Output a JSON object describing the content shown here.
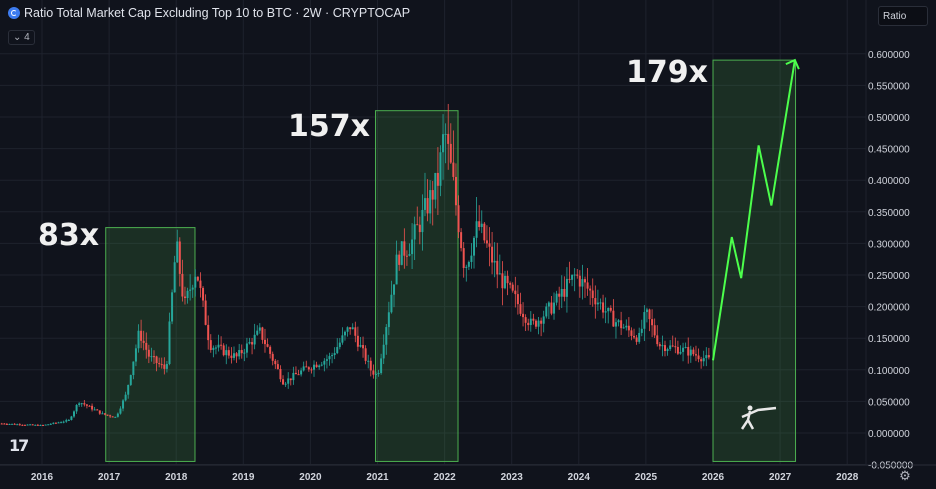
{
  "header": {
    "title": "Ratio Total Market Cap Excluding Top 10 to BTC · 2W · CRYPTOCAP",
    "collapse_label": "4",
    "scale_button": "Ratio",
    "icon": "cryptocap-logo"
  },
  "annotations": [
    "83x",
    "157x",
    "179x"
  ],
  "colors": {
    "up": "#26a69a",
    "down": "#ef5350",
    "box_stroke": "#4caf50",
    "box_fill": "rgba(76,175,80,0.18)",
    "projection": "#4cff4c",
    "background": "#10131c"
  },
  "chart_data": {
    "type": "candlestick",
    "title": "Ratio Total Market Cap Excluding Top 10 to BTC · 2W · CRYPTOCAP",
    "x_ticks": [
      "2016",
      "2017",
      "2018",
      "2019",
      "2020",
      "2021",
      "2022",
      "2023",
      "2024",
      "2025",
      "2026",
      "2027",
      "2028"
    ],
    "y_ticks": [
      "0.600000",
      "0.550000",
      "0.500000",
      "0.450000",
      "0.400000",
      "0.350000",
      "0.300000",
      "0.250000",
      "0.200000",
      "0.150000",
      "0.100000",
      "0.050000",
      "0.000000",
      "-0.050000"
    ],
    "ylim": [
      -0.05,
      0.62
    ],
    "xlim": [
      2015.4,
      2028.9
    ],
    "grid": true,
    "price_path": [
      [
        2015.4,
        0.015
      ],
      [
        2016.0,
        0.012
      ],
      [
        2016.4,
        0.02
      ],
      [
        2016.55,
        0.05
      ],
      [
        2016.9,
        0.03
      ],
      [
        2017.1,
        0.025
      ],
      [
        2017.25,
        0.06
      ],
      [
        2017.45,
        0.16
      ],
      [
        2017.6,
        0.12
      ],
      [
        2017.85,
        0.1
      ],
      [
        2018.0,
        0.3
      ],
      [
        2018.12,
        0.2
      ],
      [
        2018.3,
        0.26
      ],
      [
        2018.5,
        0.14
      ],
      [
        2018.9,
        0.12
      ],
      [
        2019.25,
        0.16
      ],
      [
        2019.6,
        0.08
      ],
      [
        2019.9,
        0.1
      ],
      [
        2020.3,
        0.12
      ],
      [
        2020.6,
        0.17
      ],
      [
        2020.9,
        0.1
      ],
      [
        2021.0,
        0.09
      ],
      [
        2021.3,
        0.28
      ],
      [
        2021.5,
        0.3
      ],
      [
        2021.7,
        0.35
      ],
      [
        2021.9,
        0.4
      ],
      [
        2022.0,
        0.48
      ],
      [
        2022.12,
        0.4
      ],
      [
        2022.3,
        0.26
      ],
      [
        2022.5,
        0.33
      ],
      [
        2022.8,
        0.25
      ],
      [
        2023.0,
        0.22
      ],
      [
        2023.3,
        0.17
      ],
      [
        2023.6,
        0.2
      ],
      [
        2023.95,
        0.25
      ],
      [
        2024.2,
        0.22
      ],
      [
        2024.5,
        0.18
      ],
      [
        2024.9,
        0.15
      ],
      [
        2025.0,
        0.19
      ],
      [
        2025.2,
        0.14
      ],
      [
        2025.6,
        0.13
      ],
      [
        2025.95,
        0.115
      ]
    ],
    "projection": [
      [
        2026.0,
        0.115
      ],
      [
        2026.28,
        0.31
      ],
      [
        2026.42,
        0.245
      ],
      [
        2026.68,
        0.455
      ],
      [
        2026.87,
        0.36
      ],
      [
        2027.22,
        0.59
      ]
    ],
    "boxes": [
      {
        "label": "83x",
        "x": [
          2016.95,
          2018.28
        ],
        "y": [
          -0.045,
          0.325
        ]
      },
      {
        "label": "157x",
        "x": [
          2020.97,
          2022.2
        ],
        "y": [
          -0.045,
          0.51
        ]
      },
      {
        "label": "179x",
        "x": [
          2026.0,
          2027.23
        ],
        "y": [
          -0.045,
          0.59
        ]
      }
    ]
  }
}
